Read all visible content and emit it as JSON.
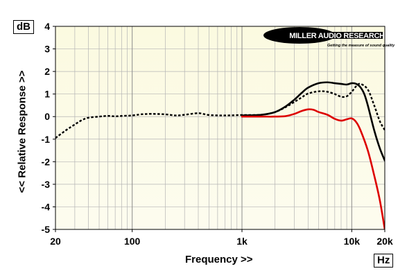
{
  "chart_data": {
    "type": "line",
    "title": "",
    "xlabel": "Frequency >>",
    "ylabel": "<< Relative Response >>",
    "y_unit": "dB",
    "x_unit": "Hz",
    "x_scale": "log",
    "xlim": [
      20,
      20000
    ],
    "ylim": [
      -5,
      4
    ],
    "grid": true,
    "x_ticks": [
      {
        "value": 20,
        "label": "20"
      },
      {
        "value": 100,
        "label": "100"
      },
      {
        "value": 1000,
        "label": "1k"
      },
      {
        "value": 10000,
        "label": "10k"
      },
      {
        "value": 20000,
        "label": "20k"
      }
    ],
    "y_ticks": [
      4,
      3,
      2,
      1,
      0,
      -1,
      -2,
      -3,
      -4,
      -5
    ],
    "logo": {
      "main": "MILLER AUDIO RESEARCH",
      "tagline": "Getting the measure of sound quality"
    },
    "colors": {
      "plot_background": "#fcfbde",
      "grid": "#b4b4b4",
      "black_series": "#000000",
      "dotted_series": "#000000",
      "red_series": "#dd0000"
    },
    "series": [
      {
        "id": "dotted",
        "style": "dotted",
        "color": "#000000",
        "x": [
          20,
          25,
          30,
          35,
          40,
          50,
          60,
          70,
          80,
          100,
          120,
          150,
          200,
          250,
          300,
          400,
          500,
          700,
          1000,
          1500,
          2000,
          2500,
          3000,
          3500,
          4000,
          5000,
          6000,
          7000,
          8000,
          9000,
          10000,
          11000,
          12000,
          14000,
          16000,
          18000,
          20000
        ],
        "y": [
          -0.95,
          -0.6,
          -0.35,
          -0.15,
          -0.05,
          0.0,
          0.03,
          0.01,
          0.03,
          0.05,
          0.1,
          0.12,
          0.1,
          0.05,
          0.08,
          0.15,
          0.07,
          0.05,
          0.07,
          0.08,
          0.2,
          0.42,
          0.65,
          0.85,
          1.02,
          1.12,
          1.1,
          1.0,
          0.88,
          0.9,
          1.1,
          1.35,
          1.45,
          1.2,
          0.5,
          -0.2,
          -0.6
        ]
      },
      {
        "id": "black",
        "style": "solid",
        "color": "#000000",
        "x": [
          1000,
          1500,
          2000,
          2500,
          3000,
          3500,
          4000,
          5000,
          6000,
          7000,
          8000,
          9000,
          10000,
          11000,
          12000,
          13000,
          14000,
          16000,
          18000,
          20000
        ],
        "y": [
          0.05,
          0.08,
          0.2,
          0.45,
          0.75,
          1.05,
          1.28,
          1.48,
          1.52,
          1.48,
          1.45,
          1.42,
          1.48,
          1.45,
          1.3,
          1.0,
          0.5,
          -0.6,
          -1.4,
          -1.95
        ]
      },
      {
        "id": "red",
        "style": "solid",
        "color": "#dd0000",
        "x": [
          1000,
          1500,
          2000,
          2500,
          3000,
          3500,
          4000,
          4500,
          5000,
          6000,
          7000,
          8000,
          9000,
          10000,
          11000,
          12000,
          14000,
          16000,
          18000,
          20000
        ],
        "y": [
          0.0,
          0.0,
          0.0,
          0.02,
          0.12,
          0.25,
          0.32,
          0.3,
          0.2,
          0.08,
          -0.1,
          -0.18,
          -0.12,
          -0.08,
          -0.25,
          -0.6,
          -1.5,
          -2.6,
          -3.7,
          -5.0
        ]
      }
    ]
  }
}
